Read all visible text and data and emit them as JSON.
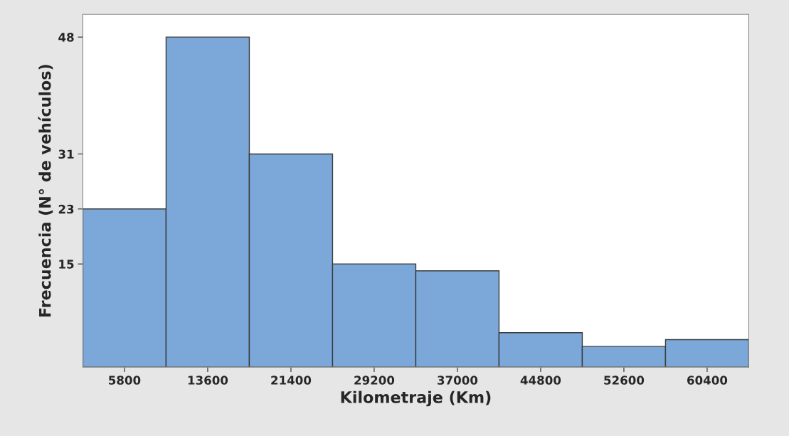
{
  "chart_data": {
    "type": "histogram",
    "xlabel": "Kilometraje (Km)",
    "ylabel": "Frecuencia (N° de vehículos)",
    "bins": [
      1900,
      9700,
      17500,
      25300,
      33100,
      40900,
      48700,
      56500,
      64300
    ],
    "values": [
      23,
      48,
      31,
      15,
      14,
      5,
      3,
      4
    ],
    "color": "#7ba7d9",
    "xlim": [
      1900,
      64300
    ],
    "xticks": [
      5800,
      13600,
      21400,
      29200,
      37000,
      44800,
      52600,
      60400
    ],
    "ylim": [
      0,
      51.3
    ],
    "yticks": [
      15,
      23,
      31,
      48
    ],
    "grid": false
  }
}
